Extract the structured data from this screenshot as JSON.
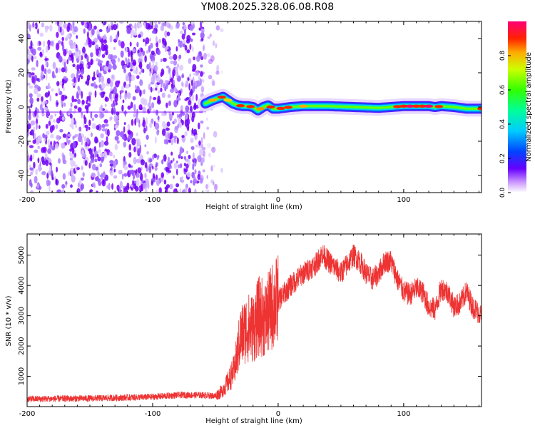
{
  "title": "YM08.2025.328.06.08.R08",
  "colors": {
    "snr_line": "#ee3333",
    "axis": "#000000",
    "scatter": "#7a00ff"
  },
  "chart_data": [
    {
      "type": "heatmap",
      "name": "spectrogram",
      "title": "YM08.2025.328.06.08.R08",
      "xlabel": "Height of straight line (km)",
      "ylabel": "Frequency (Hz)",
      "xlim": [
        -200,
        162
      ],
      "ylim": [
        -50,
        50
      ],
      "xticks": [
        -200,
        -100,
        0,
        100
      ],
      "yticks": [
        -40,
        -20,
        0,
        20,
        40
      ],
      "noise_region_x": [
        -200,
        -60
      ],
      "signal_ridge": {
        "x": [
          -58,
          -52,
          -48,
          -44,
          -40,
          -36,
          -32,
          -28,
          -24,
          -20,
          -16,
          -12,
          -8,
          -4,
          0,
          10,
          20,
          40,
          60,
          80,
          90,
          100,
          110,
          120,
          125,
          130,
          140,
          150,
          162
        ],
        "y": [
          2,
          4,
          5,
          6,
          4,
          2,
          1,
          0.5,
          0.5,
          0,
          -2,
          0,
          1,
          -1,
          -1,
          0,
          0.5,
          0.5,
          0,
          -0.5,
          0,
          0.5,
          0.5,
          0.5,
          0,
          0.5,
          0,
          -1,
          -1
        ]
      },
      "colorbar": {
        "label": "Normalized spectral amplitude",
        "range": [
          0,
          1
        ],
        "ticks": [
          "0.0",
          "0.2",
          "0.4",
          "0.6",
          "0.8"
        ]
      }
    },
    {
      "type": "line",
      "name": "snr",
      "xlabel": "Height of straight line (km)",
      "ylabel": "SNR (10 * v/v)",
      "xlim": [
        -200,
        162
      ],
      "ylim": [
        0,
        5700
      ],
      "xticks": [
        -200,
        -100,
        0,
        100
      ],
      "yticks": [
        1000,
        2000,
        3000,
        4000,
        5000
      ],
      "series": [
        {
          "name": "SNR",
          "x": [
            -200,
            -150,
            -100,
            -80,
            -60,
            -50,
            -45,
            -40,
            -35,
            -30,
            -25,
            -20,
            -15,
            -10,
            -5,
            0,
            10,
            20,
            30,
            35,
            40,
            45,
            50,
            55,
            60,
            65,
            70,
            75,
            80,
            85,
            90,
            95,
            100,
            105,
            110,
            115,
            120,
            125,
            130,
            135,
            140,
            145,
            150,
            155,
            162
          ],
          "y": [
            250,
            270,
            320,
            380,
            380,
            350,
            500,
            800,
            1200,
            2300,
            2600,
            2600,
            3000,
            2900,
            3300,
            3500,
            4000,
            4400,
            4700,
            5050,
            4800,
            4600,
            4400,
            4700,
            5000,
            4800,
            4400,
            4200,
            4400,
            4800,
            4800,
            4200,
            3800,
            3700,
            3900,
            3800,
            3300,
            3200,
            3900,
            3800,
            3300,
            3400,
            3800,
            3300,
            3000
          ]
        }
      ]
    }
  ]
}
